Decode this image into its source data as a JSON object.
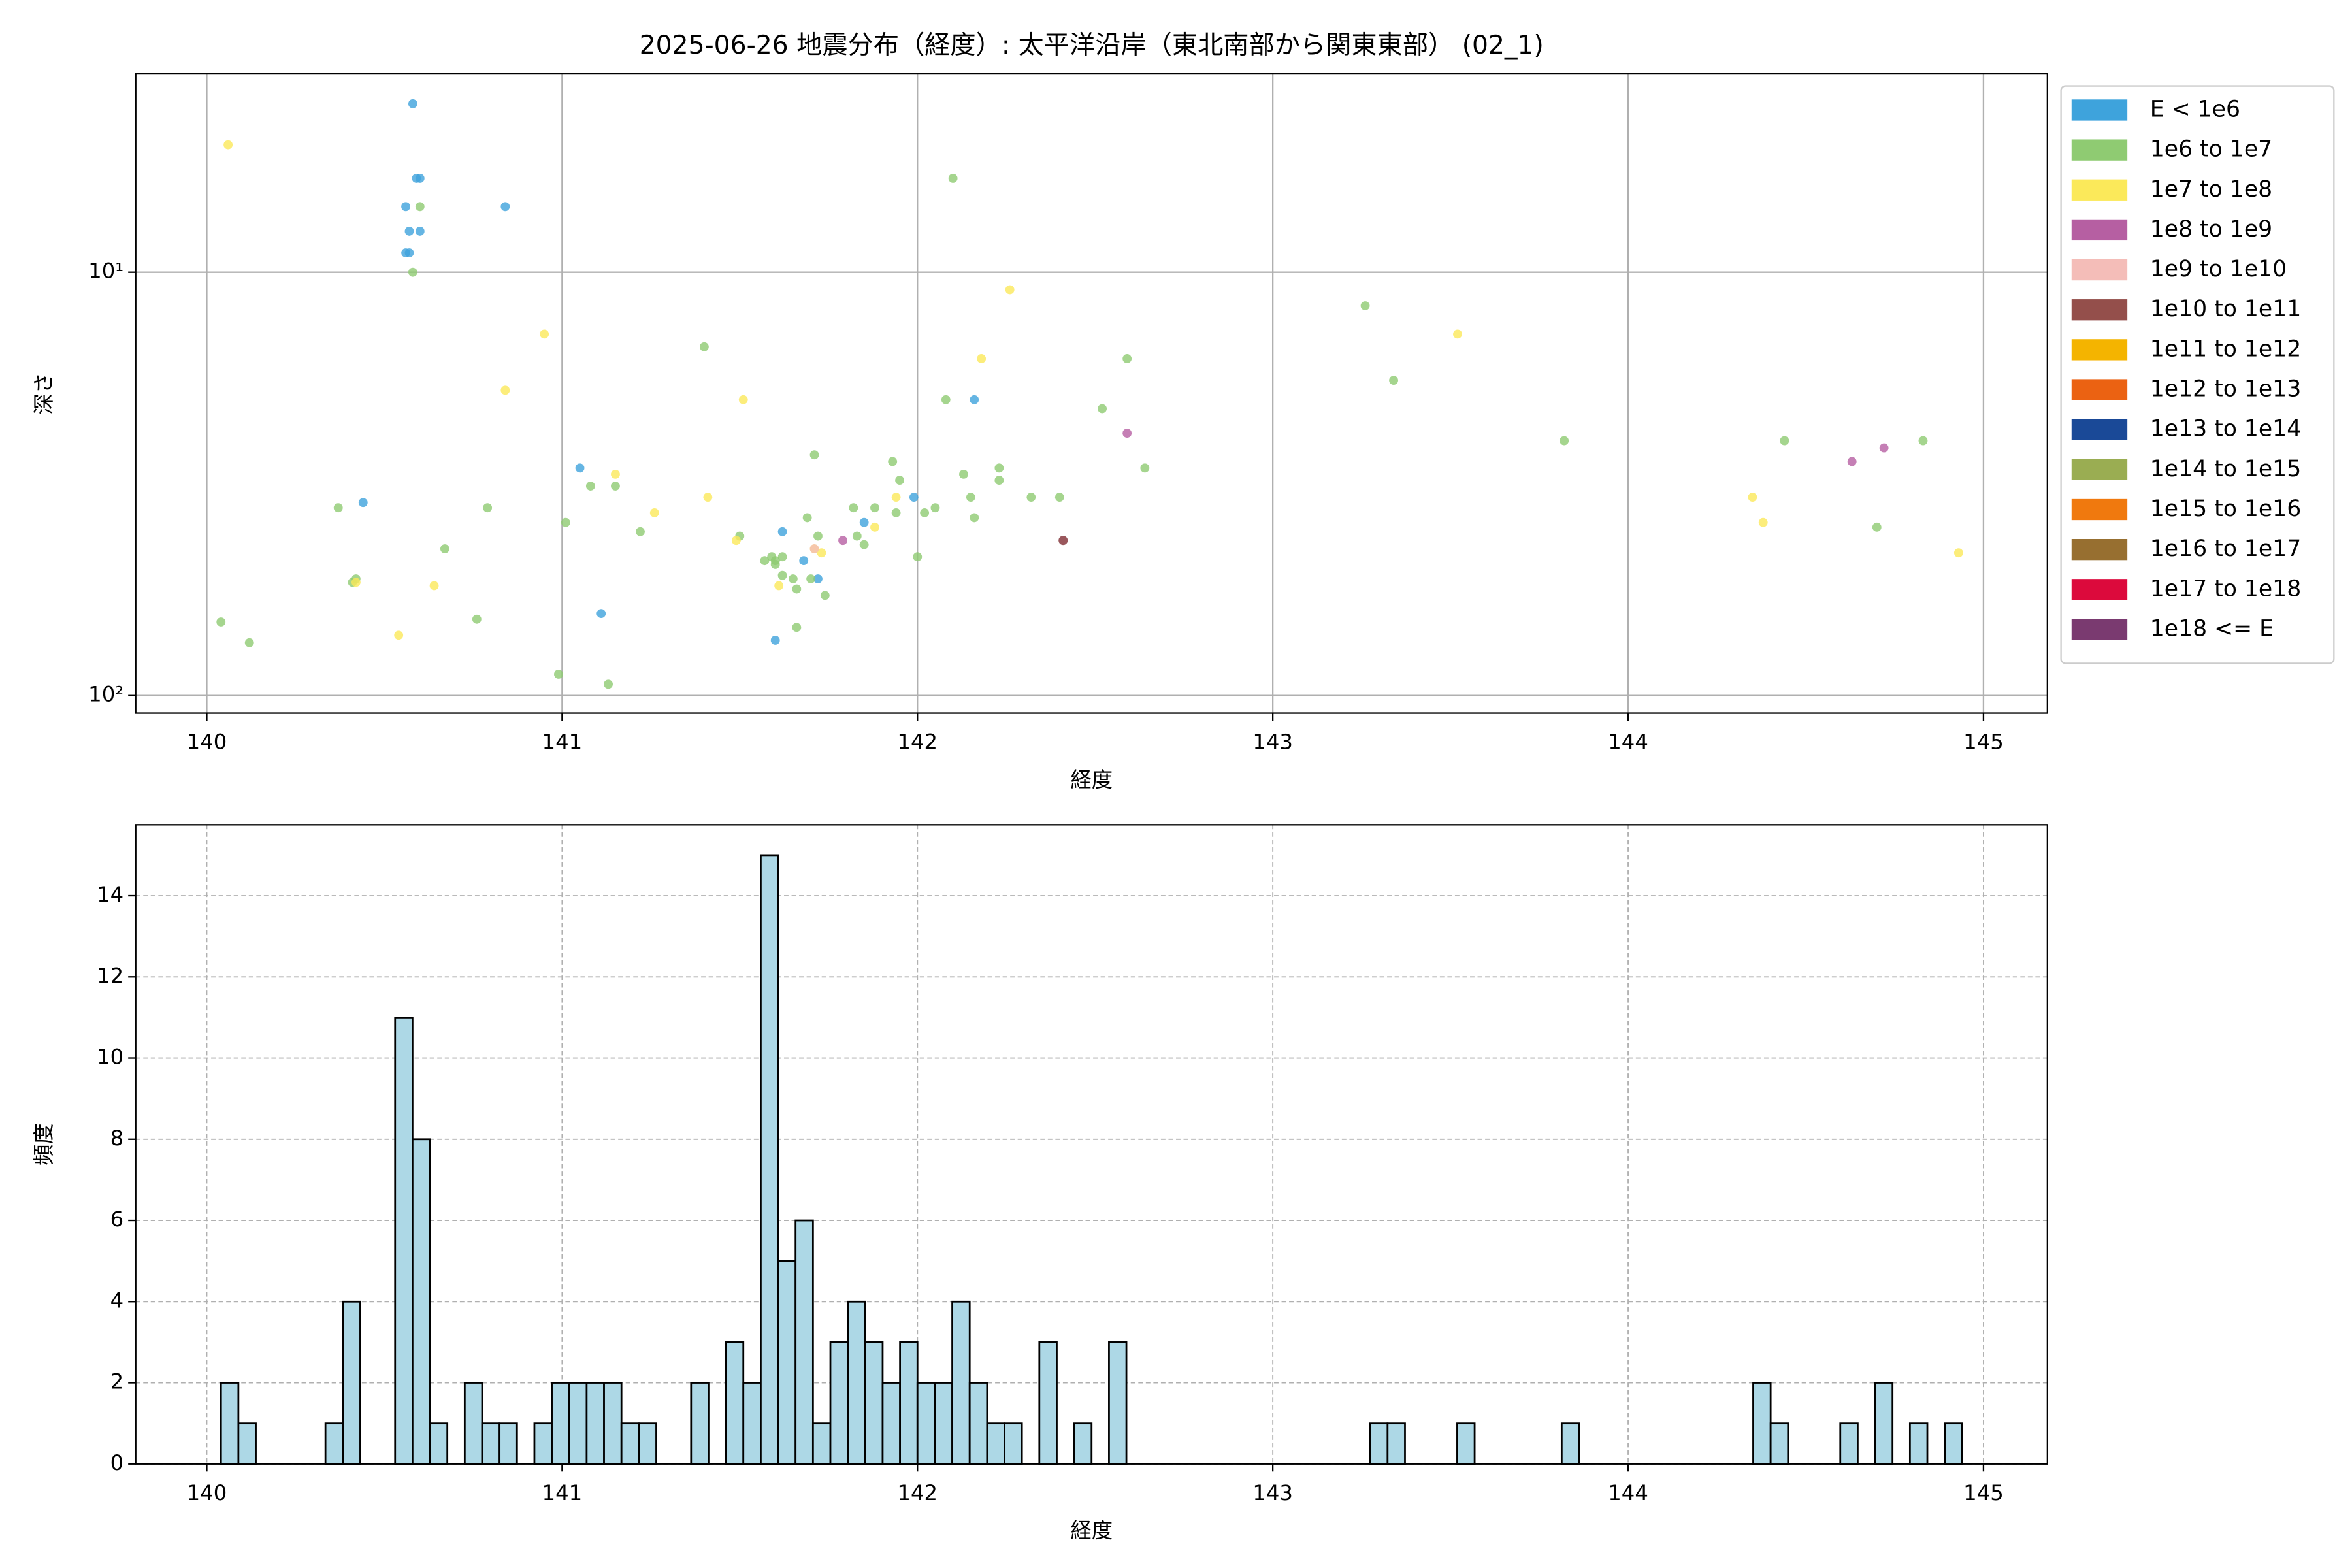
{
  "chart_data": [
    {
      "type": "scatter",
      "title": "2025-06-26 地震分布（経度）: 太平洋沿岸（東北南部から関東東部） (02_1)",
      "xlabel": "経度",
      "ylabel": "深さ",
      "xlim": [
        139.8,
        145.18
      ],
      "xticks": [
        140,
        141,
        142,
        143,
        144,
        145
      ],
      "ylim": [
        3.4,
        110
      ],
      "yticks": [
        {
          "value": 10,
          "label": "10¹"
        },
        {
          "value": 100,
          "label": "10²"
        }
      ],
      "log_y": true,
      "invert_y": true,
      "grid": true,
      "legend": "outside right",
      "series": [
        {
          "name": "E < 1e6",
          "color": "#3ea3dc",
          "x": [
            140.58,
            140.59,
            140.6,
            140.56,
            140.84,
            140.57,
            140.6,
            140.56,
            140.57,
            140.44,
            141.05,
            141.11,
            141.62,
            141.6,
            141.68,
            141.72,
            141.85,
            141.99,
            142.16
          ],
          "values": [
            4.0,
            6.0,
            6.0,
            7.0,
            7.0,
            8.0,
            8.0,
            9.0,
            9.0,
            35,
            29,
            64,
            41,
            74,
            48,
            53,
            39,
            34,
            20
          ]
        },
        {
          "name": "1e6 to 1e7",
          "color": "#8fcb72",
          "x": [
            140.6,
            140.58,
            140.04,
            140.12,
            140.37,
            140.41,
            140.42,
            140.67,
            140.76,
            140.79,
            140.99,
            141.01,
            141.08,
            141.13,
            141.15,
            141.22,
            141.4,
            141.5,
            141.57,
            141.59,
            141.6,
            141.62,
            141.6,
            141.62,
            141.65,
            141.66,
            141.7,
            141.66,
            141.69,
            141.71,
            141.72,
            141.74,
            141.82,
            141.83,
            141.85,
            141.88,
            141.93,
            141.94,
            141.95,
            142.0,
            142.02,
            142.05,
            142.08,
            142.1,
            142.13,
            142.15,
            142.16,
            142.23,
            142.23,
            142.32,
            142.4,
            142.41,
            142.52,
            142.59,
            142.64,
            143.26,
            143.34,
            143.82,
            144.44,
            144.7,
            144.83
          ],
          "values": [
            7.0,
            10,
            67,
            75,
            36,
            54,
            53,
            45,
            66,
            36,
            89,
            39,
            32,
            94,
            32,
            41,
            15,
            42,
            48,
            47,
            48,
            47,
            49,
            52,
            53,
            56,
            53,
            69,
            38,
            27,
            42,
            58,
            36,
            42,
            44,
            36,
            28,
            37,
            31,
            47,
            37,
            36,
            20,
            6.0,
            30,
            34,
            38,
            29,
            31,
            34,
            34,
            43,
            21,
            16,
            29,
            12,
            18,
            25,
            25,
            40,
            25
          ]
        },
        {
          "name": "1e7 to 1e8",
          "color": "#fbe95a",
          "x": [
            140.06,
            140.54,
            140.42,
            140.64,
            140.84,
            140.95,
            141.15,
            141.26,
            141.41,
            141.51,
            141.49,
            141.61,
            141.73,
            141.71,
            141.88,
            141.94,
            142.18,
            142.26,
            143.52,
            144.35,
            144.38,
            144.93
          ],
          "values": [
            5.0,
            72,
            54,
            55,
            19,
            14,
            30,
            37,
            34,
            20,
            43,
            55,
            46,
            45,
            40,
            34,
            16,
            11,
            14,
            34,
            39,
            46
          ]
        },
        {
          "name": "1e8 to 1e9",
          "color": "#b65fa2",
          "x": [
            141.79,
            142.41,
            142.59,
            144.63,
            144.72
          ],
          "values": [
            43,
            43,
            24,
            28,
            26
          ]
        },
        {
          "name": "1e9 to 1e10",
          "color": "#f4bdb8",
          "x": [
            141.71
          ],
          "values": [
            45
          ]
        },
        {
          "name": "1e10 to 1e11",
          "color": "#944f4b",
          "x": [
            142.41
          ],
          "values": [
            43
          ]
        },
        {
          "name": "1e11 to 1e12",
          "color": "#f4b400",
          "x": [],
          "values": []
        },
        {
          "name": "1e12 to 1e13",
          "color": "#eb6212",
          "x": [],
          "values": []
        },
        {
          "name": "1e13 to 1e14",
          "color": "#1a4997",
          "x": [],
          "values": []
        },
        {
          "name": "1e14 to 1e15",
          "color": "#9aad52",
          "x": [],
          "values": []
        },
        {
          "name": "1e15 to 1e16",
          "color": "#f0790e",
          "x": [],
          "values": []
        },
        {
          "name": "1e16 to 1e17",
          "color": "#976f30",
          "x": [],
          "values": []
        },
        {
          "name": "1e17 to 1e18",
          "color": "#dc0a3c",
          "x": [],
          "values": []
        },
        {
          "name": "1e18 <= E",
          "color": "#7a3a70",
          "x": [],
          "values": []
        }
      ]
    },
    {
      "type": "histogram",
      "xlabel": "経度",
      "ylabel": "頻度",
      "xlim": [
        139.8,
        145.18
      ],
      "xticks": [
        140,
        141,
        142,
        143,
        144,
        145
      ],
      "ylim": [
        0,
        15.75
      ],
      "yticks": [
        0,
        2,
        4,
        6,
        8,
        10,
        12,
        14
      ],
      "grid": "dashed",
      "color": "#add8e6",
      "edgecolor": "#000000",
      "bins": [
        140.04,
        140.089,
        140.138,
        140.187,
        140.236,
        140.285,
        140.334,
        140.383,
        140.432,
        140.481,
        140.53,
        140.579,
        140.628,
        140.677,
        140.726,
        140.775,
        140.824,
        140.873,
        140.922,
        140.971,
        141.02,
        141.069,
        141.118,
        141.167,
        141.216,
        141.265,
        141.314,
        141.363,
        141.412,
        141.461,
        141.51,
        141.559,
        141.608,
        141.657,
        141.706,
        141.755,
        141.804,
        141.853,
        141.902,
        141.951,
        142.0,
        142.049,
        142.098,
        142.147,
        142.196,
        142.245,
        142.294,
        142.343,
        142.392,
        142.441,
        142.49,
        142.539,
        142.588,
        142.637,
        142.686,
        142.735,
        142.784,
        142.833,
        142.882,
        142.931,
        142.98,
        143.029,
        143.078,
        143.127,
        143.176,
        143.225,
        143.274,
        143.323,
        143.372,
        143.421,
        143.47,
        143.519,
        143.568,
        143.617,
        143.666,
        143.715,
        143.764,
        143.813,
        143.862,
        143.911,
        143.96,
        144.009,
        144.058,
        144.107,
        144.156,
        144.205,
        144.254,
        144.303,
        144.352,
        144.401,
        144.45,
        144.499,
        144.548,
        144.597,
        144.646,
        144.695,
        144.744,
        144.793,
        144.842,
        144.891,
        144.94
      ],
      "values": [
        2,
        1,
        0,
        0,
        0,
        0,
        1,
        4,
        0,
        0,
        11,
        8,
        1,
        0,
        2,
        1,
        1,
        0,
        1,
        2,
        2,
        2,
        2,
        1,
        1,
        0,
        0,
        2,
        0,
        3,
        2,
        15,
        5,
        6,
        1,
        3,
        4,
        3,
        2,
        3,
        2,
        2,
        4,
        2,
        1,
        1,
        0,
        3,
        0,
        1,
        0,
        3,
        0,
        0,
        0,
        0,
        0,
        0,
        0,
        0,
        0,
        0,
        0,
        0,
        0,
        0,
        1,
        1,
        0,
        0,
        0,
        1,
        0,
        0,
        0,
        0,
        0,
        1,
        0,
        0,
        0,
        0,
        0,
        0,
        0,
        0,
        0,
        0,
        2,
        1,
        0,
        0,
        0,
        1,
        0,
        2,
        0,
        1,
        0,
        1
      ]
    }
  ]
}
